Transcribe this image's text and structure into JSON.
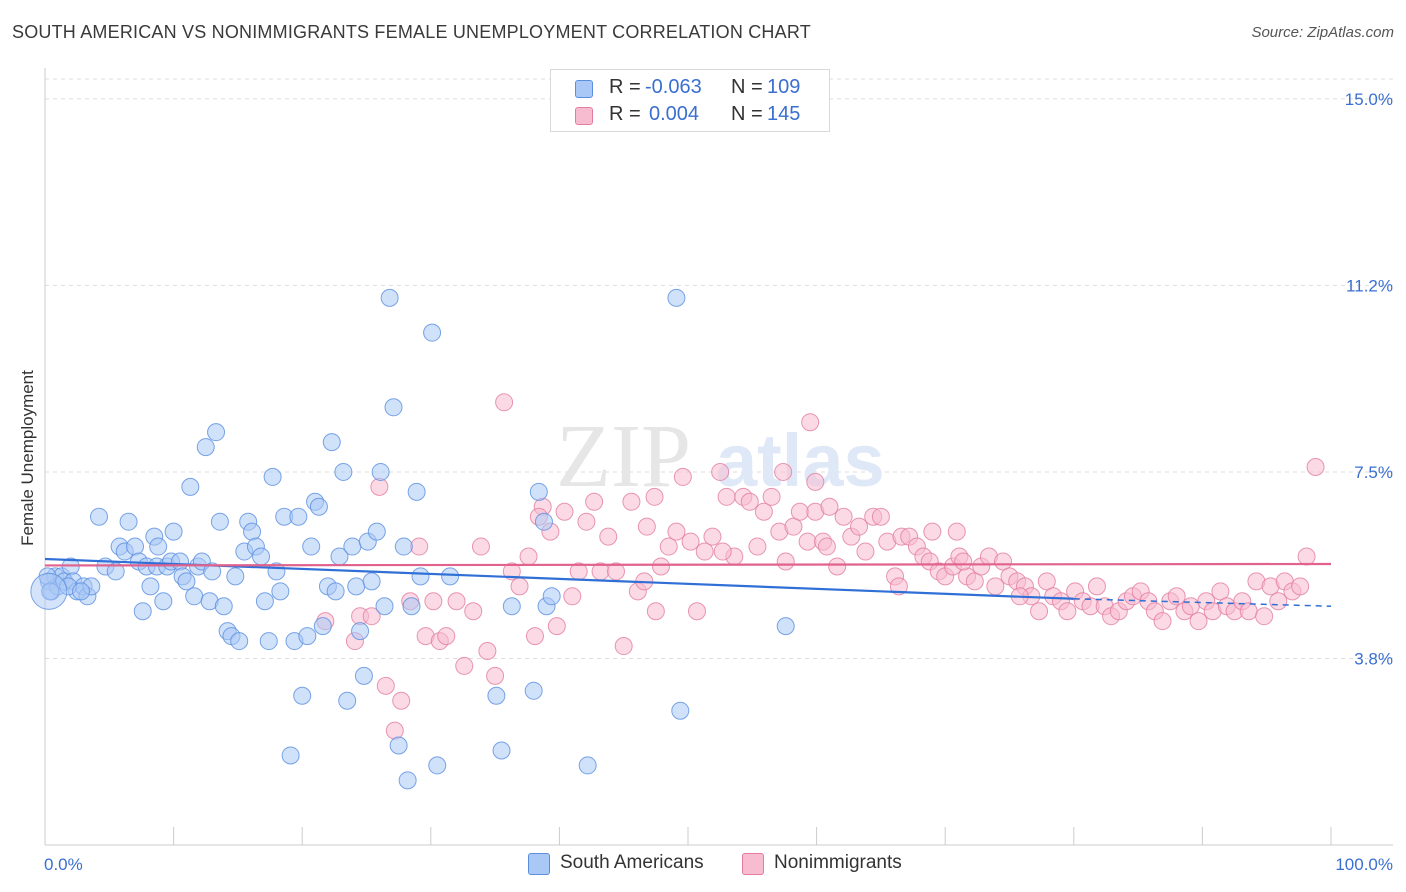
{
  "header": {
    "title": "SOUTH AMERICAN VS NONIMMIGRANTS FEMALE UNEMPLOYMENT CORRELATION CHART",
    "source": "Source: ZipAtlas.com"
  },
  "watermark": {
    "part1": "ZIP",
    "part2": "atlas"
  },
  "legend": {
    "rows": [
      {
        "r_key": "R =",
        "r_value": "-0.063",
        "n_key": "N =",
        "n_value": "109",
        "color": "#a9c8f5",
        "border": "#5a8fe0"
      },
      {
        "r_key": "R =",
        "r_value": "0.004",
        "n_key": "N =",
        "n_value": "145",
        "color": "#f7bcd0",
        "border": "#e27da0"
      }
    ]
  },
  "bottom_legend": [
    {
      "label": "South Americans",
      "color": "#a9c8f5",
      "border": "#5a8fe0"
    },
    {
      "label": "Nonimmigrants",
      "color": "#f7bcd0",
      "border": "#e27da0"
    }
  ],
  "chart_data": {
    "type": "scatter",
    "title": "SOUTH AMERICAN VS NONIMMIGRANTS FEMALE UNEMPLOYMENT CORRELATION CHART",
    "xlabel": "",
    "ylabel": "Female Unemployment",
    "x_ticks": [
      "0.0%",
      "100.0%"
    ],
    "y_ticks": [
      "15.0%",
      "11.2%",
      "7.5%",
      "3.8%"
    ],
    "y_tick_values": [
      15.0,
      11.25,
      7.5,
      3.75
    ],
    "xlim": [
      0,
      100
    ],
    "ylim": [
      0,
      15.4
    ],
    "grid": "horizontal dashed",
    "legend_placement": "top-center",
    "series": [
      {
        "name": "South Americans",
        "color": "#5a8fe0",
        "fill": "#a9c8f5",
        "trend": {
          "x": [
            0,
            80
          ],
          "y": [
            5.75,
            4.95
          ],
          "dashed_to": [
            100,
            4.8
          ]
        },
        "points": [
          [
            0.3,
            5.3
          ],
          [
            0.5,
            5.1
          ],
          [
            0.8,
            5.4
          ],
          [
            1.0,
            5.2
          ],
          [
            1.3,
            5.4
          ],
          [
            1.5,
            5.3
          ],
          [
            2.0,
            5.6
          ],
          [
            2.2,
            5.3
          ],
          [
            2.5,
            5.1
          ],
          [
            3.0,
            5.2
          ],
          [
            3.3,
            5.0
          ],
          [
            3.6,
            5.2
          ],
          [
            4.2,
            6.6
          ],
          [
            4.7,
            5.6
          ],
          [
            5.5,
            5.5
          ],
          [
            5.8,
            6.0
          ],
          [
            6.2,
            5.9
          ],
          [
            6.5,
            6.5
          ],
          [
            7.0,
            6.0
          ],
          [
            7.3,
            5.7
          ],
          [
            7.6,
            4.7
          ],
          [
            7.9,
            5.6
          ],
          [
            8.2,
            5.2
          ],
          [
            8.5,
            6.2
          ],
          [
            8.7,
            5.6
          ],
          [
            8.8,
            6.0
          ],
          [
            9.2,
            4.9
          ],
          [
            9.5,
            5.6
          ],
          [
            9.8,
            5.7
          ],
          [
            10.0,
            6.3
          ],
          [
            10.5,
            5.7
          ],
          [
            10.7,
            5.4
          ],
          [
            11.0,
            5.3
          ],
          [
            11.3,
            7.2
          ],
          [
            11.6,
            5.0
          ],
          [
            11.9,
            5.6
          ],
          [
            12.2,
            5.7
          ],
          [
            12.5,
            8.0
          ],
          [
            12.8,
            4.9
          ],
          [
            13.0,
            5.5
          ],
          [
            13.3,
            8.3
          ],
          [
            13.6,
            6.5
          ],
          [
            13.9,
            4.8
          ],
          [
            14.2,
            4.3
          ],
          [
            14.5,
            4.2
          ],
          [
            14.8,
            5.4
          ],
          [
            15.1,
            4.1
          ],
          [
            15.5,
            5.9
          ],
          [
            15.8,
            6.5
          ],
          [
            16.1,
            6.3
          ],
          [
            16.4,
            6.0
          ],
          [
            16.8,
            5.8
          ],
          [
            17.1,
            4.9
          ],
          [
            17.4,
            4.1
          ],
          [
            17.7,
            7.4
          ],
          [
            18.0,
            5.5
          ],
          [
            18.3,
            5.1
          ],
          [
            18.6,
            6.6
          ],
          [
            19.1,
            1.8
          ],
          [
            19.4,
            4.1
          ],
          [
            19.7,
            6.6
          ],
          [
            20.0,
            3.0
          ],
          [
            20.4,
            4.2
          ],
          [
            20.7,
            6.0
          ],
          [
            21.0,
            6.9
          ],
          [
            21.3,
            6.8
          ],
          [
            21.6,
            4.4
          ],
          [
            22.0,
            5.2
          ],
          [
            22.3,
            8.1
          ],
          [
            22.6,
            5.1
          ],
          [
            22.9,
            5.8
          ],
          [
            23.2,
            7.5
          ],
          [
            23.5,
            2.9
          ],
          [
            23.9,
            6.0
          ],
          [
            24.2,
            5.2
          ],
          [
            24.5,
            4.3
          ],
          [
            24.8,
            3.4
          ],
          [
            25.1,
            6.1
          ],
          [
            25.4,
            5.3
          ],
          [
            25.8,
            6.3
          ],
          [
            26.1,
            7.5
          ],
          [
            26.4,
            4.8
          ],
          [
            26.8,
            11.0
          ],
          [
            27.1,
            8.8
          ],
          [
            27.5,
            2.0
          ],
          [
            27.9,
            6.0
          ],
          [
            28.2,
            1.3
          ],
          [
            28.5,
            4.8
          ],
          [
            28.9,
            7.1
          ],
          [
            29.2,
            5.4
          ],
          [
            30.1,
            10.3
          ],
          [
            30.5,
            1.6
          ],
          [
            31.5,
            5.4
          ],
          [
            35.1,
            3.0
          ],
          [
            35.5,
            1.9
          ],
          [
            36.3,
            4.8
          ],
          [
            38.0,
            3.1
          ],
          [
            38.4,
            7.1
          ],
          [
            38.8,
            6.5
          ],
          [
            39.0,
            4.8
          ],
          [
            39.4,
            5.0
          ],
          [
            42.2,
            1.6
          ],
          [
            49.1,
            11.0
          ],
          [
            49.4,
            2.7
          ],
          [
            57.6,
            4.4
          ],
          [
            0.2,
            5.4
          ],
          [
            0.4,
            5.1
          ],
          [
            1.8,
            5.2
          ],
          [
            2.8,
            5.1
          ]
        ]
      },
      {
        "name": "Nonimmigrants",
        "color": "#e27da0",
        "fill": "#f7bcd0",
        "trend": {
          "x": [
            0,
            100
          ],
          "y": [
            5.62,
            5.65
          ]
        },
        "points": [
          [
            21.8,
            4.5
          ],
          [
            24.1,
            4.1
          ],
          [
            24.5,
            4.6
          ],
          [
            25.4,
            4.6
          ],
          [
            26.0,
            7.2
          ],
          [
            26.5,
            3.2
          ],
          [
            27.2,
            2.3
          ],
          [
            27.7,
            2.9
          ],
          [
            28.4,
            4.9
          ],
          [
            29.1,
            6.0
          ],
          [
            29.6,
            4.2
          ],
          [
            30.2,
            4.9
          ],
          [
            30.7,
            4.1
          ],
          [
            31.2,
            4.2
          ],
          [
            32.0,
            4.9
          ],
          [
            32.6,
            3.6
          ],
          [
            33.3,
            4.7
          ],
          [
            33.9,
            6.0
          ],
          [
            34.4,
            3.9
          ],
          [
            35.0,
            3.4
          ],
          [
            35.7,
            8.9
          ],
          [
            36.3,
            5.5
          ],
          [
            36.9,
            5.2
          ],
          [
            37.6,
            5.8
          ],
          [
            38.1,
            4.2
          ],
          [
            38.7,
            6.8
          ],
          [
            39.3,
            6.3
          ],
          [
            39.8,
            4.4
          ],
          [
            40.4,
            6.7
          ],
          [
            41.0,
            5.0
          ],
          [
            41.5,
            5.5
          ],
          [
            42.1,
            6.5
          ],
          [
            42.7,
            6.9
          ],
          [
            43.2,
            5.5
          ],
          [
            43.8,
            6.2
          ],
          [
            44.4,
            5.5
          ],
          [
            45.0,
            4.0
          ],
          [
            45.6,
            6.9
          ],
          [
            46.1,
            5.1
          ],
          [
            46.8,
            6.4
          ],
          [
            47.4,
            7.0
          ],
          [
            47.9,
            5.6
          ],
          [
            48.5,
            6.0
          ],
          [
            49.1,
            6.3
          ],
          [
            49.6,
            7.4
          ],
          [
            50.2,
            6.1
          ],
          [
            50.7,
            4.7
          ],
          [
            51.3,
            5.9
          ],
          [
            51.9,
            6.2
          ],
          [
            52.5,
            7.5
          ],
          [
            53.0,
            7.0
          ],
          [
            53.6,
            5.8
          ],
          [
            54.3,
            7.0
          ],
          [
            54.8,
            6.9
          ],
          [
            55.4,
            6.0
          ],
          [
            55.9,
            6.7
          ],
          [
            56.5,
            7.0
          ],
          [
            57.1,
            6.3
          ],
          [
            57.6,
            5.7
          ],
          [
            58.2,
            6.4
          ],
          [
            58.7,
            6.7
          ],
          [
            59.3,
            6.1
          ],
          [
            59.9,
            6.7
          ],
          [
            60.5,
            6.1
          ],
          [
            61.0,
            6.8
          ],
          [
            61.6,
            5.6
          ],
          [
            62.1,
            6.6
          ],
          [
            62.7,
            6.2
          ],
          [
            63.3,
            6.4
          ],
          [
            63.8,
            5.9
          ],
          [
            64.4,
            6.6
          ],
          [
            65.0,
            6.6
          ],
          [
            65.5,
            6.1
          ],
          [
            66.1,
            5.4
          ],
          [
            66.6,
            6.2
          ],
          [
            67.2,
            6.2
          ],
          [
            67.8,
            6.0
          ],
          [
            68.3,
            5.8
          ],
          [
            68.8,
            5.7
          ],
          [
            69.5,
            5.5
          ],
          [
            70.0,
            5.4
          ],
          [
            70.6,
            5.6
          ],
          [
            71.1,
            5.8
          ],
          [
            71.7,
            5.4
          ],
          [
            72.3,
            5.3
          ],
          [
            72.8,
            5.6
          ],
          [
            73.4,
            5.8
          ],
          [
            73.9,
            5.2
          ],
          [
            74.5,
            5.7
          ],
          [
            75.0,
            5.4
          ],
          [
            75.6,
            5.3
          ],
          [
            76.2,
            5.2
          ],
          [
            76.7,
            5.0
          ],
          [
            77.3,
            4.7
          ],
          [
            77.9,
            5.3
          ],
          [
            78.4,
            5.0
          ],
          [
            79.0,
            4.9
          ],
          [
            79.5,
            4.7
          ],
          [
            80.1,
            5.1
          ],
          [
            80.7,
            4.9
          ],
          [
            81.3,
            4.8
          ],
          [
            81.8,
            5.2
          ],
          [
            82.4,
            4.8
          ],
          [
            82.9,
            4.6
          ],
          [
            83.5,
            4.7
          ],
          [
            84.1,
            4.9
          ],
          [
            84.6,
            5.0
          ],
          [
            85.2,
            5.1
          ],
          [
            85.8,
            4.9
          ],
          [
            86.3,
            4.7
          ],
          [
            86.9,
            4.5
          ],
          [
            87.5,
            4.9
          ],
          [
            88.0,
            5.0
          ],
          [
            88.6,
            4.7
          ],
          [
            89.1,
            4.8
          ],
          [
            89.7,
            4.5
          ],
          [
            90.3,
            4.9
          ],
          [
            90.8,
            4.7
          ],
          [
            91.4,
            5.1
          ],
          [
            91.9,
            4.8
          ],
          [
            92.5,
            4.7
          ],
          [
            93.1,
            4.9
          ],
          [
            93.6,
            4.7
          ],
          [
            94.2,
            5.3
          ],
          [
            94.8,
            4.6
          ],
          [
            95.3,
            5.2
          ],
          [
            95.9,
            4.9
          ],
          [
            96.4,
            5.3
          ],
          [
            97.0,
            5.1
          ],
          [
            97.6,
            5.2
          ],
          [
            98.1,
            5.8
          ],
          [
            98.8,
            7.6
          ],
          [
            59.5,
            8.5
          ],
          [
            59.9,
            7.3
          ],
          [
            38.4,
            6.6
          ],
          [
            57.4,
            7.5
          ],
          [
            69.0,
            6.3
          ],
          [
            71.4,
            5.7
          ],
          [
            46.6,
            5.3
          ],
          [
            52.7,
            5.9
          ],
          [
            60.8,
            6.0
          ],
          [
            75.8,
            5.0
          ],
          [
            70.9,
            6.3
          ],
          [
            66.4,
            5.2
          ],
          [
            47.5,
            4.7
          ]
        ]
      }
    ]
  }
}
